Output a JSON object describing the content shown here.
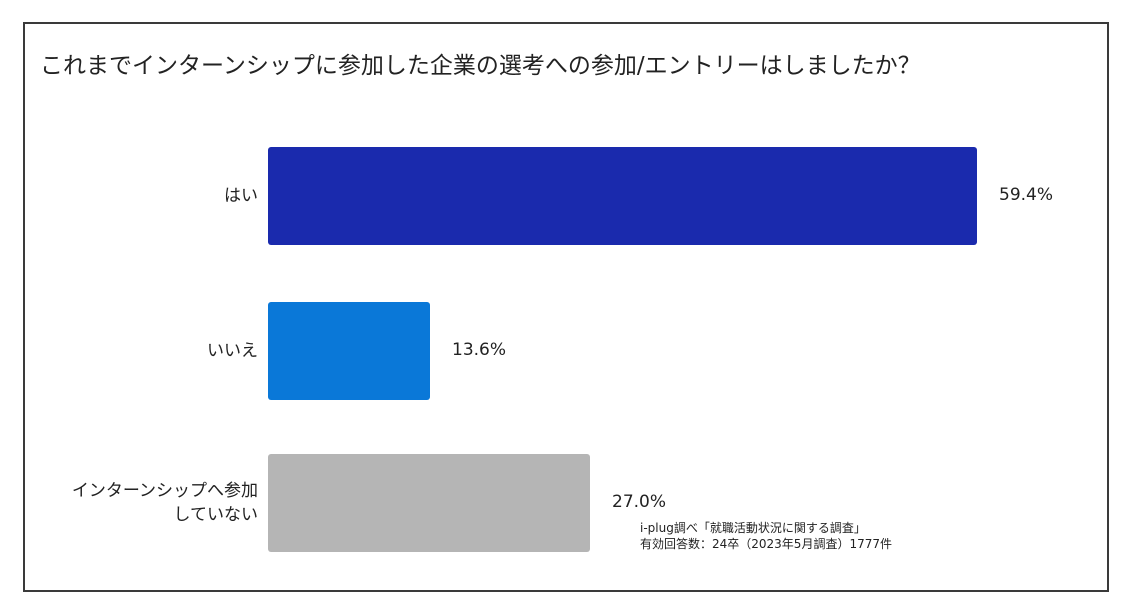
{
  "chart_data": {
    "type": "bar",
    "orientation": "horizontal",
    "title": "これまでインターンシップに参加した企業の選考への参加/エントリーはしましたか？",
    "categories": [
      "はい",
      "いいえ",
      "インターンシップへ参加していない"
    ],
    "category_lines": [
      [
        "はい"
      ],
      [
        "いいえ"
      ],
      [
        "インターンシップへ参加",
        "していない"
      ]
    ],
    "values": [
      59.4,
      13.6,
      27.0
    ],
    "value_labels": [
      "59.4%",
      "13.6%",
      "27.0%"
    ],
    "colors": [
      "#1a2aad",
      "#0a78d8",
      "#b5b5b5"
    ],
    "xlim": [
      0,
      100
    ],
    "unit": "%",
    "grid": false,
    "legend": "none",
    "xlabel": "",
    "ylabel": ""
  },
  "source": {
    "line1": "i-plug調べ「就職活動状況に関する調査」",
    "line2": "有効回答数：24卒（2023年5月調査）1777件"
  }
}
